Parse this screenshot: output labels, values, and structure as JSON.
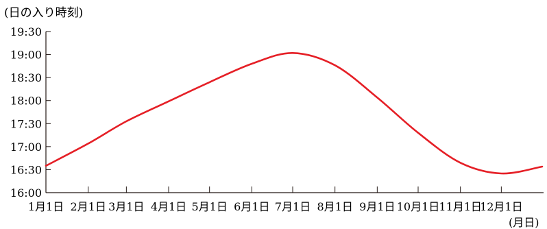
{
  "chart_data": {
    "type": "line",
    "ylabel": "(日の入り時刻)",
    "xlabel": "(月日)",
    "ylim": [
      "16:00",
      "19:30"
    ],
    "y_ticks": [
      "19:30",
      "19:00",
      "18:30",
      "18:00",
      "17:30",
      "17:00",
      "16:30",
      "16:00"
    ],
    "x_ticks": [
      "1月1日",
      "2月1日",
      "3月1日",
      "4月1日",
      "5月1日",
      "6月1日",
      "7月1日",
      "8月1日",
      "9月1日",
      "10月1日",
      "11月1日",
      "12月1日"
    ],
    "grid": false,
    "line_color": "#e51f26",
    "series": [
      {
        "x": [
          "1月1日",
          "2月1日",
          "3月1日",
          "4月1日",
          "5月1日",
          "6月1日",
          "7月1日",
          "8月1日",
          "9月1日",
          "10月1日",
          "11月1日",
          "12月1日",
          "12月31日"
        ],
        "y": [
          "16:35",
          "17:04",
          "17:33",
          "17:59",
          "18:24",
          "18:48",
          "19:02",
          "18:46",
          "18:04",
          "17:18",
          "16:39",
          "16:25",
          "16:34"
        ]
      }
    ]
  }
}
